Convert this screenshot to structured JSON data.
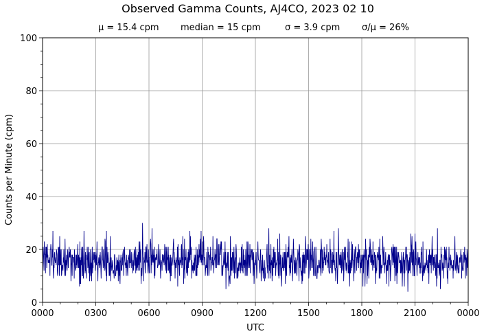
{
  "chart_data": {
    "type": "line",
    "title": "Observed Gamma Counts, AJ4CO, 2023 02 10",
    "subtitle": {
      "mean": "μ = 15.4 cpm",
      "median": "median = 15 cpm",
      "sigma": "σ = 3.9 cpm",
      "ratio": "σ/μ = 26%"
    },
    "xlabel": "UTC",
    "ylabel": "Counts per Minute (cpm)",
    "x_ticks": [
      "0000",
      "0300",
      "0600",
      "0900",
      "1200",
      "1500",
      "1800",
      "2100",
      "0000"
    ],
    "y_ticks": [
      "0",
      "20",
      "40",
      "60",
      "80",
      "100"
    ],
    "xlim_hours": [
      0,
      24
    ],
    "ylim": [
      0,
      100
    ],
    "grid": true,
    "series": [
      {
        "color": "#00008b",
        "sampling": "one value per minute",
        "summary": {
          "mean": 15.4,
          "median": 15,
          "std": 3.9,
          "min": 4,
          "max": 30
        },
        "notable_peaks": [
          {
            "time": "0035",
            "value": 27
          },
          {
            "time": "0220",
            "value": 27
          },
          {
            "time": "0538",
            "value": 30
          },
          {
            "time": "0610",
            "value": 28
          },
          {
            "time": "1245",
            "value": 28
          },
          {
            "time": "1640",
            "value": 28
          },
          {
            "time": "2215",
            "value": 28
          }
        ],
        "notable_dips": [
          {
            "time": "1020",
            "value": 5
          },
          {
            "time": "2035",
            "value": 4
          },
          {
            "time": "2225",
            "value": 5
          }
        ]
      }
    ]
  }
}
